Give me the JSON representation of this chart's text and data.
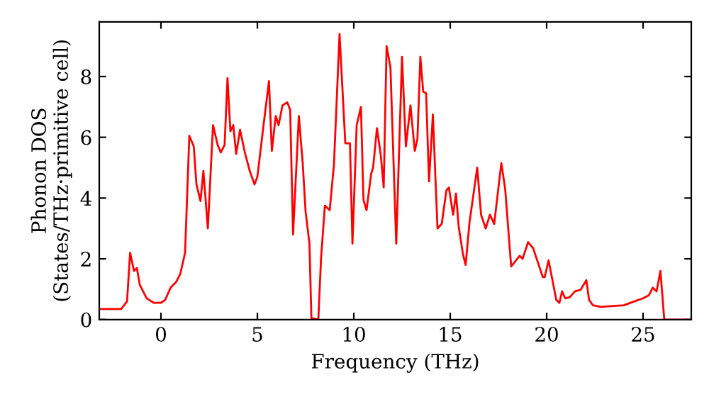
{
  "chart_data": {
    "type": "line",
    "xlabel": "Frequency (THz)",
    "ylabel": "Phonon DOS\n(States/THz·primitive cell)",
    "xlim": [
      -3.2,
      27.5
    ],
    "ylim": [
      0,
      9.8
    ],
    "xticks": [
      0,
      5,
      10,
      15,
      20,
      25
    ],
    "yticks": [
      0,
      2,
      4,
      6,
      8
    ],
    "grid": false,
    "legend": false,
    "marker": "none",
    "line_style": "solid",
    "series": [
      {
        "color": "#ff0000",
        "x": [
          -3.2,
          -2.06,
          -1.76,
          -1.6,
          -1.4,
          -1.25,
          -1.1,
          -0.74,
          -0.37,
          0,
          0.22,
          0.5,
          0.8,
          1.0,
          1.25,
          1.47,
          1.7,
          1.84,
          2.05,
          2.2,
          2.43,
          2.7,
          2.94,
          3.1,
          3.3,
          3.45,
          3.6,
          3.75,
          3.9,
          4.1,
          4.35,
          4.6,
          4.85,
          5.0,
          5.3,
          5.6,
          5.75,
          5.95,
          6.1,
          6.3,
          6.55,
          6.7,
          6.85,
          7.15,
          7.35,
          7.5,
          7.7,
          7.8,
          8.16,
          8.3,
          8.5,
          8.75,
          8.97,
          9.26,
          9.56,
          9.8,
          9.93,
          10.15,
          10.37,
          10.5,
          10.66,
          10.9,
          11.0,
          11.2,
          11.4,
          11.55,
          11.7,
          11.9,
          12.2,
          12.5,
          12.7,
          12.94,
          13.16,
          13.3,
          13.45,
          13.6,
          13.75,
          13.9,
          14.1,
          14.34,
          14.56,
          14.8,
          14.93,
          15.15,
          15.3,
          15.44,
          15.66,
          15.8,
          16.0,
          16.4,
          16.6,
          16.84,
          17.06,
          17.28,
          17.65,
          17.85,
          18.16,
          18.6,
          18.75,
          19.04,
          19.3,
          19.8,
          19.9,
          20.1,
          20.5,
          20.66,
          20.8,
          20.96,
          21.2,
          21.47,
          21.76,
          22.06,
          22.2,
          22.4,
          22.8,
          23.45,
          24.0,
          24.55,
          25.0,
          25.3,
          25.5,
          25.7,
          25.9,
          26.1,
          27.5
        ],
        "values": [
          0.35,
          0.35,
          0.6,
          2.2,
          1.6,
          1.7,
          1.15,
          0.7,
          0.55,
          0.55,
          0.65,
          1.05,
          1.25,
          1.5,
          2.2,
          6.05,
          5.7,
          4.45,
          3.9,
          4.9,
          3.0,
          6.4,
          5.75,
          5.5,
          5.75,
          7.95,
          6.2,
          6.4,
          5.45,
          6.25,
          5.5,
          4.9,
          4.45,
          4.7,
          6.3,
          7.85,
          5.55,
          6.7,
          6.4,
          7.05,
          7.15,
          6.9,
          2.8,
          6.7,
          5.15,
          3.55,
          2.5,
          0.05,
          0,
          2.0,
          3.75,
          3.6,
          5.1,
          9.4,
          5.8,
          5.8,
          2.5,
          6.4,
          7.0,
          3.95,
          3.6,
          4.8,
          5.0,
          6.3,
          5.4,
          4.35,
          9.0,
          8.3,
          2.5,
          8.65,
          5.7,
          7.05,
          5.55,
          5.95,
          8.65,
          7.5,
          7.45,
          4.55,
          6.75,
          3.0,
          3.15,
          4.25,
          4.35,
          3.45,
          4.15,
          3.05,
          2.15,
          1.8,
          3.2,
          5.0,
          3.45,
          3.0,
          3.45,
          3.15,
          5.15,
          4.3,
          1.75,
          2.1,
          2.0,
          2.55,
          2.35,
          1.4,
          1.4,
          1.95,
          0.65,
          0.55,
          0.93,
          0.7,
          0.74,
          0.93,
          0.98,
          1.3,
          0.65,
          0.47,
          0.42,
          0.45,
          0.47,
          0.6,
          0.7,
          0.8,
          1.05,
          0.93,
          1.6,
          0,
          0
        ]
      }
    ]
  }
}
